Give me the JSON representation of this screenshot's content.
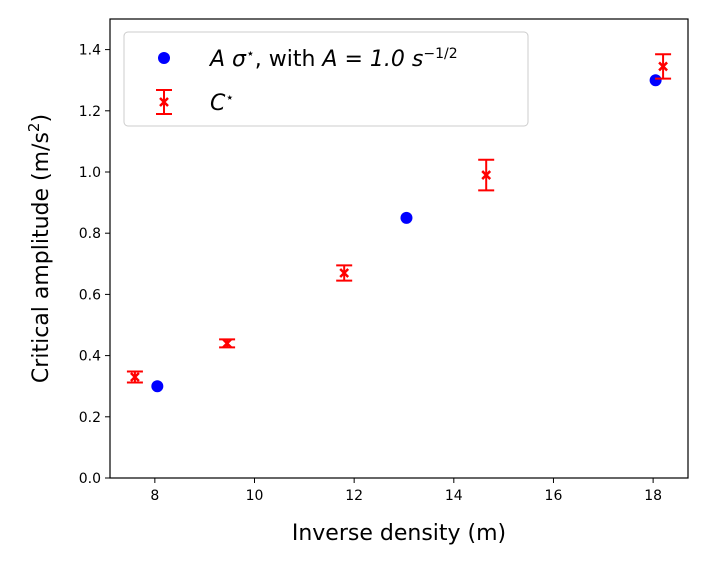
{
  "chart_data": {
    "type": "scatter",
    "xlabel": "Inverse density (m)",
    "ylabel_main": "Critical amplitude (m/s",
    "ylabel_sup": "2",
    "ylabel_close": ")",
    "xlim": [
      7.1,
      18.7
    ],
    "ylim": [
      0.0,
      1.5
    ],
    "xticks": [
      8,
      10,
      12,
      14,
      16,
      18
    ],
    "xtick_labels": [
      "8",
      "10",
      "12",
      "14",
      "16",
      "18"
    ],
    "yticks": [
      0.0,
      0.2,
      0.4,
      0.6,
      0.8,
      1.0,
      1.2,
      1.4
    ],
    "ytick_labels": [
      "0.0",
      "0.2",
      "0.4",
      "0.6",
      "0.8",
      "1.0",
      "1.2",
      "1.4"
    ],
    "grid": false,
    "legend_position": "top-left",
    "series": [
      {
        "key": "sigma",
        "marker": "circle",
        "color": "#0000ff",
        "x": [
          8.05,
          13.05,
          18.05
        ],
        "y": [
          0.3,
          0.85,
          1.3
        ]
      },
      {
        "key": "C",
        "marker": "x-errorbar",
        "color": "#ff0000",
        "x": [
          7.6,
          9.45,
          11.8,
          14.65,
          18.2
        ],
        "y": [
          0.33,
          0.44,
          0.67,
          0.99,
          1.345
        ],
        "yerr": [
          0.018,
          0.013,
          0.025,
          0.05,
          0.04
        ]
      }
    ],
    "legend": {
      "sigma": {
        "symbol": "A σ",
        "sup": "⋆",
        "middle": ", with ",
        "equation": "A = 1.0 s",
        "eq_sup": "−1/2"
      },
      "C": {
        "symbol": "C",
        "sup": "⋆"
      }
    }
  }
}
